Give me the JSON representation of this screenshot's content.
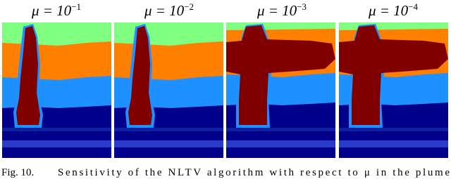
{
  "panels": [
    {
      "title": "μ = 10",
      "exponent": "−1"
    },
    {
      "title": "μ = 10",
      "exponent": "−2"
    },
    {
      "title": "μ = 10",
      "exponent": "−3"
    },
    {
      "title": "μ = 10",
      "exponent": "−4"
    }
  ],
  "caption": {
    "label": "Fig. 10.",
    "text": "Sensitivity of the NLTV algorithm with respect to μ in the plume"
  }
}
